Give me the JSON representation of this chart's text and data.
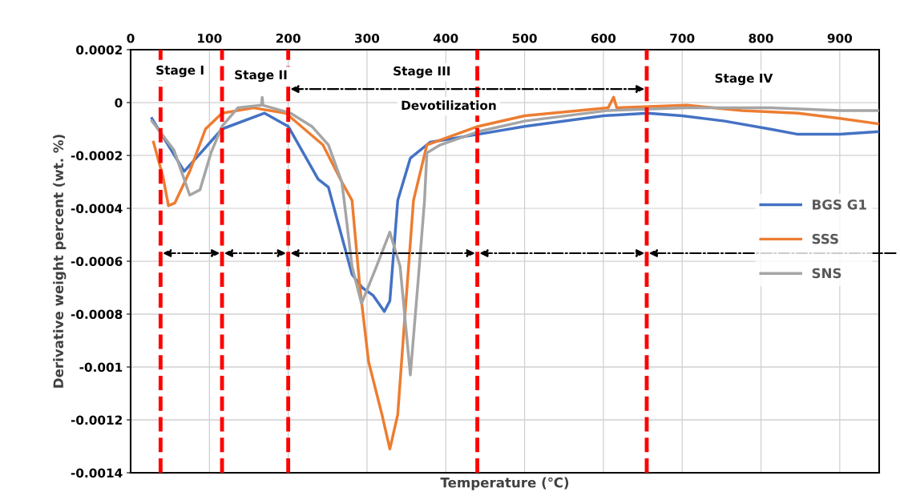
{
  "chart_data": {
    "type": "line",
    "xlabel": "Temperature (℃)",
    "ylabel": "Derivative weight percent (wt. %)",
    "xlim": [
      0,
      950
    ],
    "xticks": [
      0,
      100,
      200,
      300,
      400,
      500,
      600,
      700,
      800,
      900
    ],
    "ylim": [
      -0.0014,
      0.0002
    ],
    "yticks": [
      0.0002,
      0,
      -0.0002,
      -0.0004,
      -0.0006,
      -0.0008,
      -0.001,
      -0.0012,
      -0.0014
    ],
    "grid": true,
    "legend": "right",
    "line_style": "solid",
    "marker": "none",
    "series": [
      {
        "name": "BGS G1",
        "color": "#4472c4",
        "x": [
          27,
          68,
          116,
          170,
          200,
          238,
          251,
          281,
          294,
          308,
          322,
          329,
          339,
          355,
          380,
          441,
          500,
          600,
          656,
          700,
          754,
          811,
          847,
          900,
          948
        ],
        "values": [
          -6e-05,
          -0.00026,
          -0.0001,
          -4e-05,
          -9e-05,
          -0.00029,
          -0.00032,
          -0.00065,
          -0.0007,
          -0.00073,
          -0.00079,
          -0.00075,
          -0.00037,
          -0.00021,
          -0.00015,
          -0.00012,
          -9e-05,
          -5e-05,
          -4e-05,
          -5e-05,
          -7e-05,
          -0.0001,
          -0.00012,
          -0.00012,
          -0.00011
        ]
      },
      {
        "name": "SSS",
        "color": "#ed7d31",
        "x": [
          29,
          41,
          48,
          56,
          75,
          95,
          116,
          156,
          197,
          244,
          268,
          281,
          291,
          302,
          319,
          329,
          339,
          349,
          359,
          376,
          441,
          500,
          606,
          613,
          617,
          706,
          776,
          847,
          900,
          948
        ],
        "values": [
          -0.00015,
          -0.00028,
          -0.00039,
          -0.00038,
          -0.00026,
          -0.0001,
          -4e-05,
          -2e-05,
          -4e-05,
          -0.00016,
          -0.0003,
          -0.00037,
          -0.0007,
          -0.00098,
          -0.00118,
          -0.00131,
          -0.00118,
          -0.00077,
          -0.00037,
          -0.00016,
          -9e-05,
          -5e-05,
          -2e-05,
          2e-05,
          -2e-05,
          -1e-05,
          -3e-05,
          -4e-05,
          -6e-05,
          -8e-05
        ]
      },
      {
        "name": "SNS",
        "color": "#a5a5a5",
        "x": [
          27,
          55,
          75,
          88,
          102,
          116,
          136,
          166,
          167,
          168,
          203,
          230,
          251,
          268,
          271,
          281,
          293,
          312,
          329,
          342,
          355,
          365,
          373,
          376,
          393,
          441,
          500,
          606,
          706,
          811,
          900,
          948
        ],
        "values": [
          -7e-05,
          -0.00018,
          -0.00035,
          -0.00033,
          -0.00019,
          -9e-05,
          -2e-05,
          -1e-05,
          2e-05,
          -1e-05,
          -4e-05,
          -9e-05,
          -0.00016,
          -0.0003,
          -0.00037,
          -0.00062,
          -0.00076,
          -0.00062,
          -0.00049,
          -0.00062,
          -0.00103,
          -0.00067,
          -0.00037,
          -0.00019,
          -0.00016,
          -0.00011,
          -7e-05,
          -3e-05,
          -2e-05,
          -2e-05,
          -3e-05,
          -3e-05
        ]
      }
    ],
    "ref_lines": [
      {
        "axis": "x",
        "value": 38,
        "color": "#ff0000",
        "line_style": "dashed"
      },
      {
        "axis": "x",
        "value": 116,
        "color": "#ff0000",
        "line_style": "dashed"
      },
      {
        "axis": "x",
        "value": 200,
        "color": "#ff0000",
        "line_style": "dashed"
      },
      {
        "axis": "x",
        "value": 440,
        "color": "#ff0000",
        "line_style": "dashed"
      },
      {
        "axis": "x",
        "value": 655,
        "color": "#ff0000",
        "line_style": "dashed"
      }
    ],
    "annotations": [
      "Stage I",
      "Stage II",
      "Stage III",
      "Devotilization",
      "Stage IV"
    ]
  }
}
